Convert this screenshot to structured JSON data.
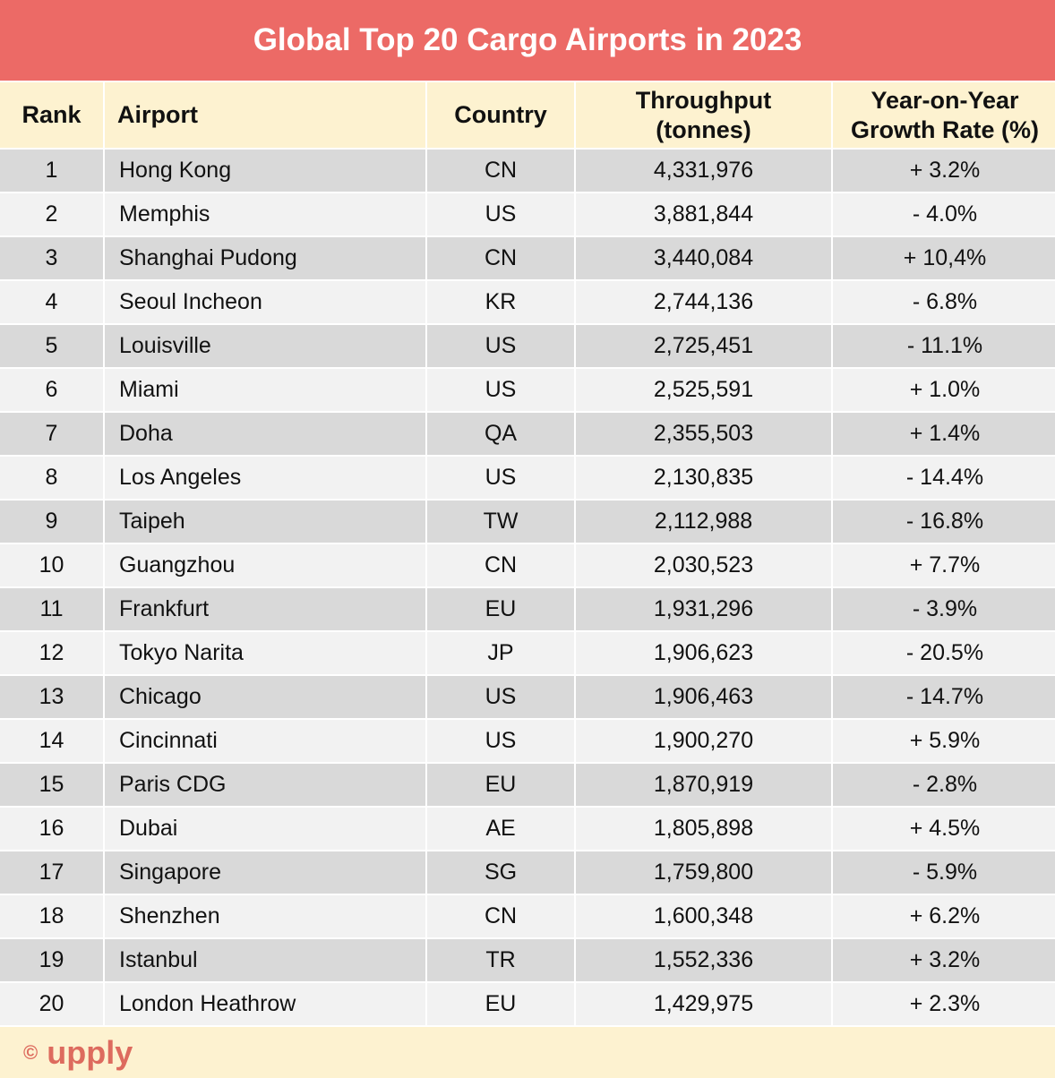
{
  "title": "Global Top 20 Cargo Airports in 2023",
  "footer": {
    "copyright": "©",
    "brand": "upply"
  },
  "colors": {
    "title_bg": "#ec6a66",
    "header_bg": "#fdf2d0",
    "row_dark": "#d9d9d9",
    "row_light": "#f2f2f2",
    "brand": "#dd6b5e"
  },
  "chart_data": {
    "type": "table",
    "title": "Global Top 20 Cargo Airports in 2023",
    "columns": [
      "Rank",
      "Airport",
      "Country",
      "Throughput\n(tonnes)",
      "Year-on-Year\nGrowth Rate (%)"
    ],
    "rows": [
      [
        "1",
        "Hong Kong",
        "CN",
        "4,331,976",
        "+ 3.2%"
      ],
      [
        "2",
        "Memphis",
        "US",
        "3,881,844",
        "- 4.0%"
      ],
      [
        "3",
        "Shanghai Pudong",
        "CN",
        "3,440,084",
        "+ 10,4%"
      ],
      [
        "4",
        "Seoul Incheon",
        "KR",
        "2,744,136",
        "- 6.8%"
      ],
      [
        "5",
        "Louisville",
        "US",
        "2,725,451",
        "- 11.1%"
      ],
      [
        "6",
        "Miami",
        "US",
        "2,525,591",
        "+ 1.0%"
      ],
      [
        "7",
        "Doha",
        "QA",
        "2,355,503",
        "+ 1.4%"
      ],
      [
        "8",
        "Los Angeles",
        "US",
        "2,130,835",
        "- 14.4%"
      ],
      [
        "9",
        "Taipeh",
        "TW",
        "2,112,988",
        "- 16.8%"
      ],
      [
        "10",
        "Guangzhou",
        "CN",
        "2,030,523",
        "+ 7.7%"
      ],
      [
        "11",
        "Frankfurt",
        "EU",
        "1,931,296",
        "- 3.9%"
      ],
      [
        "12",
        "Tokyo Narita",
        "JP",
        "1,906,623",
        "- 20.5%"
      ],
      [
        "13",
        "Chicago",
        "US",
        "1,906,463",
        "- 14.7%"
      ],
      [
        "14",
        "Cincinnati",
        "US",
        "1,900,270",
        "+ 5.9%"
      ],
      [
        "15",
        "Paris CDG",
        "EU",
        "1,870,919",
        "- 2.8%"
      ],
      [
        "16",
        "Dubai",
        "AE",
        "1,805,898",
        "+ 4.5%"
      ],
      [
        "17",
        "Singapore",
        "SG",
        "1,759,800",
        "- 5.9%"
      ],
      [
        "18",
        "Shenzhen",
        "CN",
        "1,600,348",
        "+ 6.2%"
      ],
      [
        "19",
        "Istanbul",
        "TR",
        "1,552,336",
        "+ 3.2%"
      ],
      [
        "20",
        "London Heathrow",
        "EU",
        "1,429,975",
        "+ 2.3%"
      ]
    ]
  }
}
